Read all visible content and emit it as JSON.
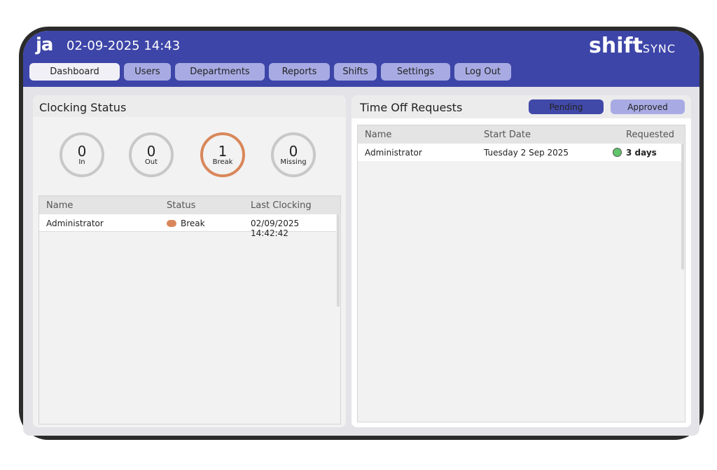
{
  "header": {
    "logo": "ja",
    "datetime": "02-09-2025 14:43",
    "brand_main": "shift",
    "brand_sub": "SYNC"
  },
  "nav": [
    {
      "label": "Dashboard"
    },
    {
      "label": "Users"
    },
    {
      "label": "Departments"
    },
    {
      "label": "Reports"
    },
    {
      "label": "Shifts"
    },
    {
      "label": "Settings"
    },
    {
      "label": "Log Out"
    }
  ],
  "clocking": {
    "title": "Clocking Status",
    "counters": [
      {
        "value": "0",
        "label": "In"
      },
      {
        "value": "0",
        "label": "Out"
      },
      {
        "value": "1",
        "label": "Break",
        "color": "#d9875a"
      },
      {
        "value": "0",
        "label": "Missing"
      }
    ],
    "columns": [
      "Name",
      "Status",
      "Last Clocking"
    ],
    "rows": [
      {
        "name": "Administrator",
        "status": "Break",
        "status_color": "#d9875a",
        "last": "02/09/2025 14:42:42"
      }
    ]
  },
  "timeoff": {
    "title": "Time Off Requests",
    "filters": [
      {
        "label": "Pending"
      },
      {
        "label": "Approved"
      }
    ],
    "columns": [
      "Name",
      "Start Date",
      "Requested"
    ],
    "rows": [
      {
        "name": "Administrator",
        "start": "Tuesday 2 Sep 2025",
        "requested": "3 days",
        "indicator_color": "#5fc46a"
      }
    ]
  }
}
